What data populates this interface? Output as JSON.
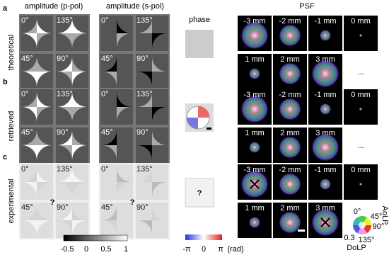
{
  "panel_labels": [
    "a",
    "b",
    "c"
  ],
  "headers": {
    "p_pol": "amplitude (p-pol)",
    "s_pol": "amplitude (s-pol)",
    "phase": "phase",
    "psf": "PSF"
  },
  "rows": [
    "theoretical",
    "retrieved",
    "experimental"
  ],
  "angles": [
    "0°",
    "135°",
    "45°",
    "90°"
  ],
  "psf_labels": [
    "-3 mm",
    "-2 mm",
    "-1 mm",
    "0 mm",
    "1 mm",
    "2 mm",
    "3 mm"
  ],
  "ellipsis": "...",
  "unknown": "?",
  "amplitude_colorbar": [
    "-0.5",
    "0",
    "0.5",
    "1"
  ],
  "phase_colorbar": [
    "-π",
    "0",
    "π"
  ],
  "phase_unit": "(rad)",
  "legend": {
    "aolp": "AoLP",
    "dolp": "DoLP",
    "angles": [
      "0°",
      "45°",
      "90°",
      "135°"
    ],
    "dolp_min": "0.3"
  }
}
